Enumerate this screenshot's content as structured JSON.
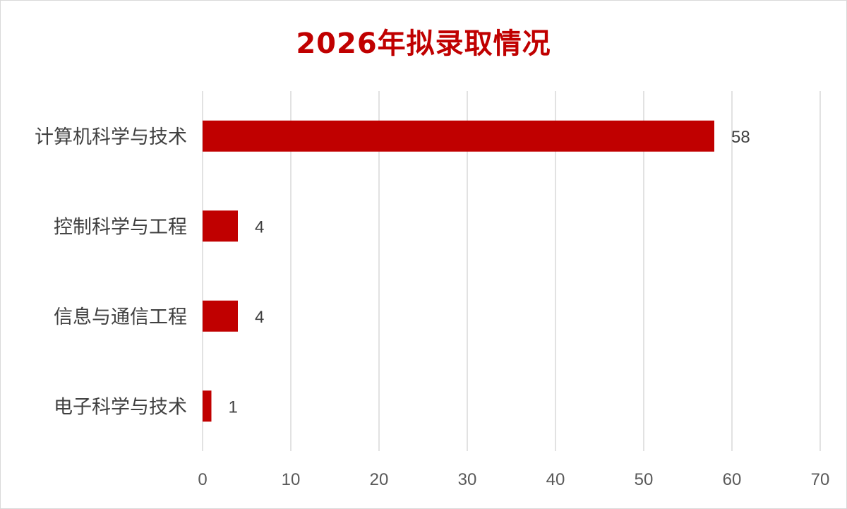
{
  "chart_data": {
    "type": "bar",
    "orientation": "horizontal",
    "title": "2026年拟录取情况",
    "categories": [
      "计算机科学与技术",
      "控制科学与工程",
      "信息与通信工程",
      "电子科学与技术"
    ],
    "values": [
      58,
      4,
      4,
      1
    ],
    "xlim": [
      0,
      70
    ],
    "xticks": [
      0,
      10,
      20,
      30,
      40,
      50,
      60,
      70
    ],
    "grid": "vertical",
    "legend": "none",
    "data_labels": true
  },
  "colors": {
    "bar": "#c00000",
    "title": "#c00000",
    "grid": "#d9d9d9"
  }
}
